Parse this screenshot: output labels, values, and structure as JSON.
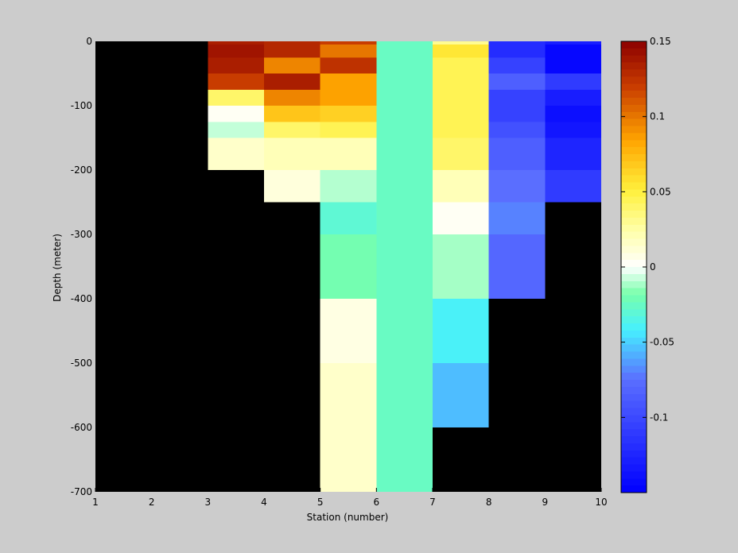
{
  "chart_data": {
    "type": "heatmap",
    "title": "",
    "xlabel": "Station (number)",
    "ylabel": "Depth (meter)",
    "xlim": [
      1,
      10
    ],
    "ylim": [
      -700,
      0
    ],
    "x_ticks": [
      "1",
      "2",
      "3",
      "4",
      "5",
      "6",
      "7",
      "8",
      "9",
      "10"
    ],
    "y_ticks": [
      "0",
      "-100",
      "-200",
      "-300",
      "-400",
      "-500",
      "-600",
      "-700"
    ],
    "colorbar": {
      "range": [
        -0.15,
        0.15
      ],
      "colormap": "jet-like (blue - cyan - green - white - yellow - orange - dark red)",
      "ticks": [
        "0.15",
        "0.1",
        "0.05",
        "0",
        "-0.05",
        "-0.1"
      ]
    },
    "background_color": "#000000",
    "figure_color": "#cccccc",
    "grid": false,
    "columns": [
      {
        "x_start": 1,
        "x_end": 2,
        "cells": []
      },
      {
        "x_start": 2,
        "x_end": 3,
        "cells": []
      },
      {
        "x_start": 3,
        "x_end": 4,
        "cells": [
          {
            "top": 0,
            "bottom": -5,
            "value": 0.135
          },
          {
            "top": -5,
            "bottom": -25,
            "value": 0.14
          },
          {
            "top": -25,
            "bottom": -50,
            "value": 0.135
          },
          {
            "top": -50,
            "bottom": -75,
            "value": 0.12
          },
          {
            "top": -75,
            "bottom": -100,
            "value": 0.04
          },
          {
            "top": -100,
            "bottom": -125,
            "value": 0.003
          },
          {
            "top": -125,
            "bottom": -150,
            "value": -0.008
          },
          {
            "top": -150,
            "bottom": -200,
            "value": 0.015
          }
        ]
      },
      {
        "x_start": 4,
        "x_end": 5,
        "cells": [
          {
            "top": 0,
            "bottom": -5,
            "value": 0.13
          },
          {
            "top": -5,
            "bottom": -25,
            "value": 0.13
          },
          {
            "top": -25,
            "bottom": -50,
            "value": 0.095
          },
          {
            "top": -50,
            "bottom": -75,
            "value": 0.135
          },
          {
            "top": -75,
            "bottom": -100,
            "value": 0.095
          },
          {
            "top": -100,
            "bottom": -125,
            "value": 0.07
          },
          {
            "top": -125,
            "bottom": -150,
            "value": 0.04
          },
          {
            "top": -150,
            "bottom": -200,
            "value": 0.02
          },
          {
            "top": -200,
            "bottom": -250,
            "value": 0.01
          }
        ]
      },
      {
        "x_start": 5,
        "x_end": 6,
        "cells": [
          {
            "top": 0,
            "bottom": -5,
            "value": 0.12
          },
          {
            "top": -5,
            "bottom": -25,
            "value": 0.1
          },
          {
            "top": -25,
            "bottom": -50,
            "value": 0.125
          },
          {
            "top": -50,
            "bottom": -75,
            "value": 0.085
          },
          {
            "top": -75,
            "bottom": -100,
            "value": 0.085
          },
          {
            "top": -100,
            "bottom": -125,
            "value": 0.065
          },
          {
            "top": -125,
            "bottom": -150,
            "value": 0.045
          },
          {
            "top": -150,
            "bottom": -200,
            "value": 0.02
          },
          {
            "top": -200,
            "bottom": -250,
            "value": -0.01
          },
          {
            "top": -250,
            "bottom": -300,
            "value": -0.03
          },
          {
            "top": -300,
            "bottom": -400,
            "value": -0.02
          },
          {
            "top": -400,
            "bottom": -500,
            "value": 0.008
          },
          {
            "top": -500,
            "bottom": -700,
            "value": 0.015
          }
        ]
      },
      {
        "x_start": 6,
        "x_end": 7,
        "cells": [
          {
            "top": 0,
            "bottom": -700,
            "value": -0.025
          }
        ]
      },
      {
        "x_start": 7,
        "x_end": 8,
        "cells": [
          {
            "top": 0,
            "bottom": -5,
            "value": 0.03
          },
          {
            "top": -5,
            "bottom": -25,
            "value": 0.055
          },
          {
            "top": -25,
            "bottom": -50,
            "value": 0.045
          },
          {
            "top": -50,
            "bottom": -75,
            "value": 0.045
          },
          {
            "top": -75,
            "bottom": -100,
            "value": 0.045
          },
          {
            "top": -100,
            "bottom": -125,
            "value": 0.045
          },
          {
            "top": -125,
            "bottom": -150,
            "value": 0.045
          },
          {
            "top": -150,
            "bottom": -200,
            "value": 0.04
          },
          {
            "top": -200,
            "bottom": -250,
            "value": 0.02
          },
          {
            "top": -250,
            "bottom": -300,
            "value": 0.003
          },
          {
            "top": -300,
            "bottom": -400,
            "value": -0.012
          },
          {
            "top": -400,
            "bottom": -500,
            "value": -0.04
          },
          {
            "top": -500,
            "bottom": -600,
            "value": -0.055
          }
        ]
      },
      {
        "x_start": 8,
        "x_end": 9,
        "cells": [
          {
            "top": 0,
            "bottom": -5,
            "value": -0.12
          },
          {
            "top": -5,
            "bottom": -25,
            "value": -0.12
          },
          {
            "top": -25,
            "bottom": -50,
            "value": -0.105
          },
          {
            "top": -50,
            "bottom": -75,
            "value": -0.085
          },
          {
            "top": -75,
            "bottom": -100,
            "value": -0.105
          },
          {
            "top": -100,
            "bottom": -125,
            "value": -0.105
          },
          {
            "top": -125,
            "bottom": -150,
            "value": -0.095
          },
          {
            "top": -150,
            "bottom": -200,
            "value": -0.085
          },
          {
            "top": -200,
            "bottom": -250,
            "value": -0.075
          },
          {
            "top": -250,
            "bottom": -300,
            "value": -0.07
          },
          {
            "top": -300,
            "bottom": -400,
            "value": -0.08
          }
        ]
      },
      {
        "x_start": 9,
        "x_end": 10,
        "cells": [
          {
            "top": 0,
            "bottom": -5,
            "value": -0.13
          },
          {
            "top": -5,
            "bottom": -50,
            "value": -0.145
          },
          {
            "top": -50,
            "bottom": -75,
            "value": -0.11
          },
          {
            "top": -75,
            "bottom": -100,
            "value": -0.13
          },
          {
            "top": -100,
            "bottom": -125,
            "value": -0.14
          },
          {
            "top": -125,
            "bottom": -150,
            "value": -0.135
          },
          {
            "top": -150,
            "bottom": -200,
            "value": -0.125
          },
          {
            "top": -200,
            "bottom": -250,
            "value": -0.11
          }
        ]
      }
    ]
  }
}
